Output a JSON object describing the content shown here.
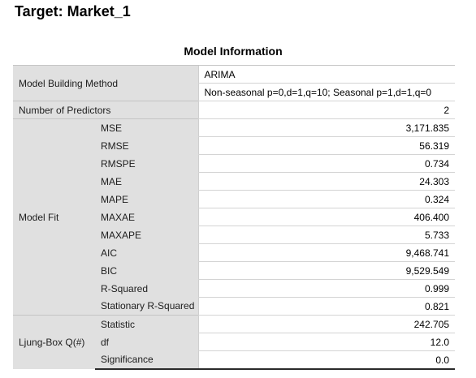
{
  "header": {
    "title": "Target: Market_1"
  },
  "table": {
    "title": "Model Information",
    "building_method": {
      "label": "Model Building Method",
      "value": "ARIMA",
      "detail": "Non-seasonal p=0,d=1,q=10; Seasonal p=1,d=1,q=0"
    },
    "predictors": {
      "label": "Number of Predictors",
      "value": "2"
    },
    "model_fit": {
      "label": "Model Fit",
      "rows": [
        {
          "stat": "MSE",
          "value": "3,171.835"
        },
        {
          "stat": "RMSE",
          "value": "56.319"
        },
        {
          "stat": "RMSPE",
          "value": "0.734"
        },
        {
          "stat": "MAE",
          "value": "24.303"
        },
        {
          "stat": "MAPE",
          "value": "0.324"
        },
        {
          "stat": "MAXAE",
          "value": "406.400"
        },
        {
          "stat": "MAXAPE",
          "value": "5.733"
        },
        {
          "stat": "AIC",
          "value": "9,468.741"
        },
        {
          "stat": "BIC",
          "value": "9,529.549"
        },
        {
          "stat": "R-Squared",
          "value": "0.999"
        },
        {
          "stat": "Stationary R-Squared",
          "value": "0.821"
        }
      ]
    },
    "ljung_box": {
      "label": "Ljung-Box Q(#)",
      "rows": [
        {
          "stat": "Statistic",
          "value": "242.705"
        },
        {
          "stat": "df",
          "value": "12.0"
        },
        {
          "stat": "Significance",
          "value": "0.0"
        }
      ]
    }
  }
}
